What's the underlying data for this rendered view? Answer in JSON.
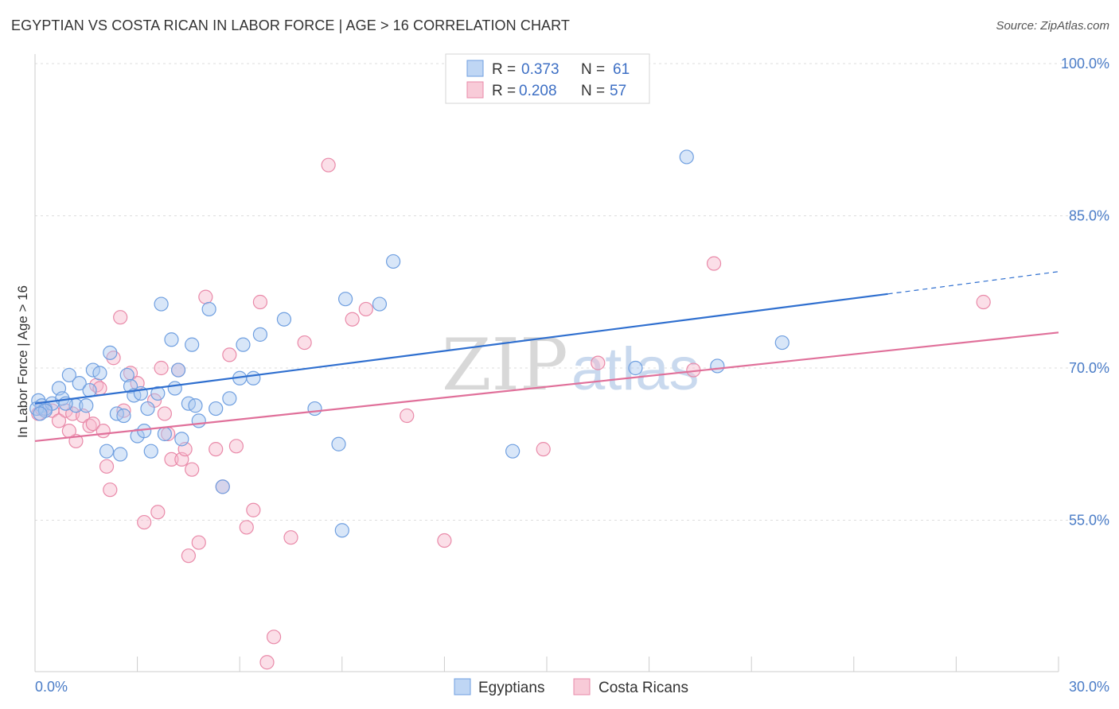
{
  "title": "EGYPTIAN VS COSTA RICAN IN LABOR FORCE | AGE > 16 CORRELATION CHART",
  "source": "Source: ZipAtlas.com",
  "watermark": {
    "zip": "ZIP",
    "atlas": "atlas"
  },
  "colors": {
    "blue_fill": "#a9c8f0",
    "blue_stroke": "#6f9fe0",
    "blue_line": "#2f6fcf",
    "pink_fill": "#f6b9cb",
    "pink_stroke": "#e98aa9",
    "pink_line": "#e0709a",
    "tick_text": "#4a7cc7",
    "grid": "#dddddd"
  },
  "legend": {
    "rows": [
      {
        "r_label": "R = ",
        "r_value": "0.373",
        "n_label": "N = ",
        "n_value": "61",
        "color": "#a9c8f0"
      },
      {
        "r_label": "R = ",
        "r_value": "0.208",
        "n_label": "N = ",
        "n_value": "57",
        "color": "#f6b9cb"
      }
    ]
  },
  "chart_data": {
    "type": "scatter",
    "title": "EGYPTIAN VS COSTA RICAN IN LABOR FORCE | AGE > 16 CORRELATION CHART",
    "xlabel": "",
    "ylabel": "In Labor Force | Age > 16",
    "xlim": [
      0,
      30
    ],
    "ylim": [
      40,
      102
    ],
    "x_tick_labels": [
      "0.0%",
      "30.0%"
    ],
    "y_ticks": [
      55,
      70,
      85,
      100
    ],
    "y_tick_labels": [
      "55.0%",
      "70.0%",
      "85.0%",
      "100.0%"
    ],
    "grid": true,
    "legend_position": "top-center",
    "series": [
      {
        "name": "Egyptians",
        "color": "#a9c8f0",
        "trend": {
          "x0": 0,
          "y0": 66.5,
          "x1": 25,
          "y1": 77.3,
          "dash_to_x": 30,
          "dash_to_y": 79.5
        },
        "points": [
          [
            0.1,
            66.8
          ],
          [
            0.2,
            66.3
          ],
          [
            0.3,
            66.0
          ],
          [
            0.5,
            66.5
          ],
          [
            0.7,
            68.0
          ],
          [
            0.8,
            67.0
          ],
          [
            1.0,
            69.3
          ],
          [
            1.2,
            66.3
          ],
          [
            1.3,
            68.5
          ],
          [
            1.5,
            66.3
          ],
          [
            1.7,
            69.8
          ],
          [
            1.9,
            69.5
          ],
          [
            2.1,
            61.8
          ],
          [
            2.2,
            71.5
          ],
          [
            2.4,
            65.5
          ],
          [
            2.5,
            61.5
          ],
          [
            2.7,
            69.3
          ],
          [
            2.8,
            68.2
          ],
          [
            2.9,
            67.3
          ],
          [
            3.0,
            63.3
          ],
          [
            3.1,
            67.5
          ],
          [
            3.3,
            66.0
          ],
          [
            3.4,
            61.8
          ],
          [
            3.6,
            67.5
          ],
          [
            3.7,
            76.3
          ],
          [
            3.8,
            63.5
          ],
          [
            4.0,
            72.8
          ],
          [
            4.1,
            68.0
          ],
          [
            4.2,
            69.8
          ],
          [
            4.3,
            63.0
          ],
          [
            4.5,
            66.5
          ],
          [
            4.6,
            72.3
          ],
          [
            4.7,
            66.3
          ],
          [
            4.8,
            64.8
          ],
          [
            5.1,
            75.8
          ],
          [
            5.5,
            58.3
          ],
          [
            5.7,
            67.0
          ],
          [
            6.0,
            69.0
          ],
          [
            6.1,
            72.3
          ],
          [
            6.4,
            69.0
          ],
          [
            6.6,
            73.3
          ],
          [
            7.3,
            74.8
          ],
          [
            8.2,
            66.0
          ],
          [
            8.9,
            62.5
          ],
          [
            9.0,
            54.0
          ],
          [
            9.1,
            76.8
          ],
          [
            10.1,
            76.3
          ],
          [
            10.5,
            80.5
          ],
          [
            14.0,
            61.8
          ],
          [
            17.6,
            70.0
          ],
          [
            19.1,
            90.8
          ],
          [
            20.0,
            70.2
          ],
          [
            21.9,
            72.5
          ],
          [
            0.05,
            66.0
          ],
          [
            0.3,
            65.8
          ],
          [
            0.9,
            66.5
          ],
          [
            1.6,
            67.8
          ],
          [
            2.6,
            65.3
          ],
          [
            3.2,
            63.8
          ],
          [
            5.3,
            66.0
          ],
          [
            0.15,
            65.5
          ]
        ]
      },
      {
        "name": "Costa Ricans",
        "color": "#f6b9cb",
        "trend": {
          "x0": 0,
          "y0": 62.8,
          "x1": 30,
          "y1": 73.5
        },
        "points": [
          [
            0.1,
            65.5
          ],
          [
            0.3,
            66.0
          ],
          [
            0.5,
            65.8
          ],
          [
            0.7,
            64.8
          ],
          [
            0.9,
            65.8
          ],
          [
            1.1,
            65.5
          ],
          [
            1.2,
            62.8
          ],
          [
            1.4,
            65.3
          ],
          [
            1.6,
            64.3
          ],
          [
            1.7,
            64.5
          ],
          [
            1.8,
            68.3
          ],
          [
            1.9,
            68.0
          ],
          [
            2.1,
            60.3
          ],
          [
            2.2,
            58.0
          ],
          [
            2.3,
            71.0
          ],
          [
            2.5,
            75.0
          ],
          [
            2.6,
            65.8
          ],
          [
            2.8,
            69.5
          ],
          [
            3.0,
            68.5
          ],
          [
            3.2,
            54.8
          ],
          [
            3.5,
            66.8
          ],
          [
            3.6,
            55.8
          ],
          [
            3.7,
            70.0
          ],
          [
            3.8,
            65.5
          ],
          [
            3.9,
            63.5
          ],
          [
            4.0,
            61.0
          ],
          [
            4.2,
            69.8
          ],
          [
            4.3,
            61.0
          ],
          [
            4.4,
            62.0
          ],
          [
            4.5,
            51.5
          ],
          [
            4.6,
            60.0
          ],
          [
            4.8,
            52.8
          ],
          [
            5.0,
            77.0
          ],
          [
            5.3,
            62.0
          ],
          [
            5.5,
            58.3
          ],
          [
            5.7,
            71.3
          ],
          [
            5.9,
            62.3
          ],
          [
            6.2,
            54.3
          ],
          [
            6.4,
            56.0
          ],
          [
            6.6,
            76.5
          ],
          [
            6.8,
            41.0
          ],
          [
            7.0,
            43.5
          ],
          [
            7.5,
            53.3
          ],
          [
            7.9,
            72.5
          ],
          [
            8.6,
            90.0
          ],
          [
            9.3,
            74.8
          ],
          [
            9.7,
            75.8
          ],
          [
            10.9,
            65.3
          ],
          [
            12.0,
            53.0
          ],
          [
            14.9,
            62.0
          ],
          [
            16.5,
            70.5
          ],
          [
            19.3,
            69.8
          ],
          [
            19.9,
            80.3
          ],
          [
            27.8,
            76.5
          ],
          [
            0.2,
            66.0
          ],
          [
            1.0,
            63.8
          ],
          [
            2.0,
            63.8
          ]
        ]
      }
    ]
  }
}
